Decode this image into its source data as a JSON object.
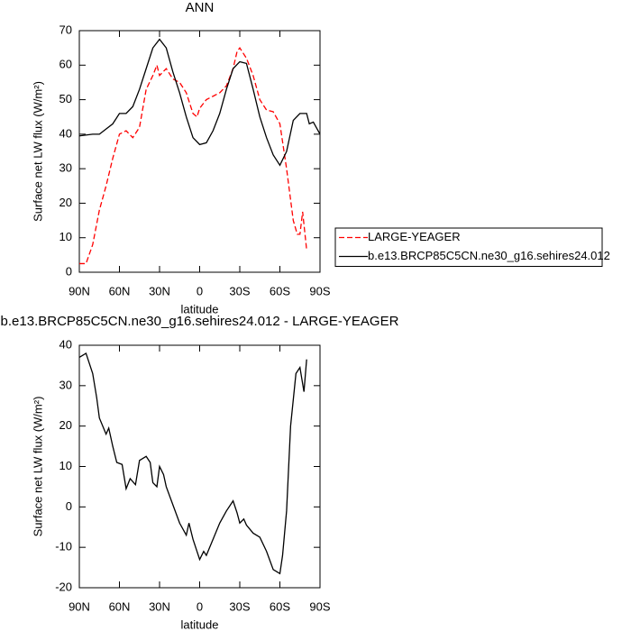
{
  "chart_data": [
    {
      "type": "line",
      "title": "ANN",
      "x_label": "latitude",
      "y_label": "Surface net LW flux (W/m²)",
      "xlim": [
        90,
        -90
      ],
      "xticks": [
        {
          "value": 90,
          "label": "90N"
        },
        {
          "value": 60,
          "label": "60N"
        },
        {
          "value": 30,
          "label": "30N"
        },
        0,
        {
          "value": -30,
          "label": "30S"
        },
        {
          "value": -60,
          "label": "60S"
        },
        {
          "value": -90,
          "label": "90S"
        }
      ],
      "ylim": [
        0,
        70
      ],
      "yticks": [
        0,
        10,
        20,
        30,
        40,
        50,
        60,
        70
      ],
      "legend": "right",
      "series": [
        {
          "name": "LARGE-YEAGER",
          "color": "#ff0000",
          "style": "dashed",
          "x": [
            90,
            85,
            80,
            75,
            70,
            65,
            60,
            55,
            50,
            45,
            40,
            35,
            32,
            30,
            25,
            20,
            15,
            10,
            5,
            2,
            0,
            -5,
            -10,
            -15,
            -20,
            -25,
            -28,
            -30,
            -35,
            -40,
            -45,
            -50,
            -55,
            -60,
            -65,
            -70,
            -73,
            -75,
            -77,
            -80
          ],
          "values": [
            2.5,
            2.5,
            8,
            18,
            25,
            33,
            40,
            41,
            39,
            42,
            53,
            57,
            60,
            57,
            59,
            56,
            55,
            52,
            46,
            45,
            47.5,
            50,
            51,
            52,
            54,
            59,
            64,
            65,
            62,
            57,
            50,
            47,
            46.5,
            43,
            30,
            15,
            11,
            11,
            17.5,
            6.5
          ]
        },
        {
          "name": "b.e13.BRCP85C5CN.ne30_g16.sehires24.012",
          "color": "#000000",
          "style": "solid",
          "x": [
            90,
            80,
            75,
            70,
            65,
            60,
            55,
            50,
            45,
            40,
            35,
            30,
            25,
            20,
            15,
            10,
            5,
            0,
            -5,
            -10,
            -15,
            -20,
            -25,
            -30,
            -35,
            -40,
            -45,
            -50,
            -55,
            -60,
            -65,
            -70,
            -75,
            -80,
            -82,
            -85,
            -90
          ],
          "values": [
            39.5,
            40,
            40,
            41.5,
            43,
            46,
            46,
            48,
            53,
            59,
            65,
            67.5,
            65,
            58,
            52,
            45,
            39,
            37,
            37.5,
            41,
            46,
            53,
            59,
            61,
            60.5,
            53,
            45,
            39,
            34,
            31,
            35,
            44,
            46,
            46,
            43,
            43.5,
            40
          ]
        }
      ]
    },
    {
      "type": "line",
      "title": "b.e13.BRCP85C5CN.ne30_g16.sehires24.012 - LARGE-YEAGER",
      "x_label": "latitude",
      "y_label": "Surface net LW flux (W/m²)",
      "xlim": [
        90,
        -90
      ],
      "xticks": [
        {
          "value": 90,
          "label": "90N"
        },
        {
          "value": 60,
          "label": "60N"
        },
        {
          "value": 30,
          "label": "30N"
        },
        0,
        {
          "value": -30,
          "label": "30S"
        },
        {
          "value": -60,
          "label": "60S"
        },
        {
          "value": -90,
          "label": "90S"
        }
      ],
      "ylim": [
        -20,
        40
      ],
      "yticks": [
        -20,
        -10,
        0,
        10,
        20,
        30,
        40
      ],
      "series": [
        {
          "color": "#000000",
          "style": "solid",
          "x": [
            90,
            85,
            80,
            77,
            75,
            70,
            68,
            65,
            62,
            58,
            55,
            52,
            48,
            45,
            40,
            37,
            35,
            32,
            30,
            27,
            25,
            20,
            15,
            10,
            8,
            5,
            2,
            0,
            -3,
            -5,
            -10,
            -15,
            -20,
            -25,
            -28,
            -30,
            -33,
            -35,
            -40,
            -45,
            -50,
            -55,
            -60,
            -62,
            -65,
            -68,
            -72,
            -75,
            -78,
            -80
          ],
          "values": [
            37,
            38,
            33,
            27,
            22,
            18,
            19.5,
            15,
            11,
            10.5,
            4.5,
            7,
            5.5,
            11.5,
            12.5,
            11,
            6,
            5,
            10,
            8,
            5,
            0.5,
            -4,
            -7,
            -4,
            -8,
            -11,
            -13,
            -11,
            -12,
            -8,
            -4,
            -1,
            1.5,
            -1.5,
            -4,
            -3,
            -4.5,
            -6.5,
            -7.5,
            -11,
            -15.5,
            -16.5,
            -12,
            -1,
            20,
            33,
            34.5,
            28.5,
            36.5
          ]
        }
      ]
    }
  ]
}
